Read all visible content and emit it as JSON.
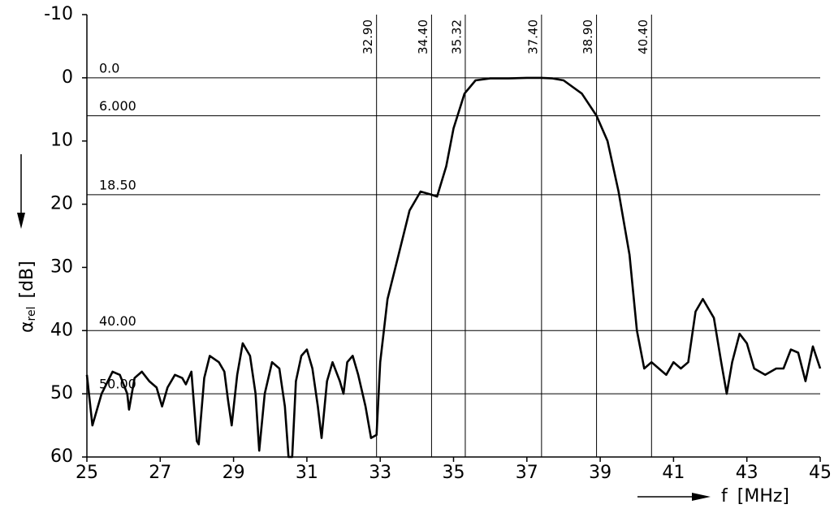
{
  "chart_data": {
    "type": "line",
    "ylabel_symbol": "α",
    "ylabel_subscript": "rel",
    "ylabel_unit": "[dB]",
    "xlabel_symbol": "f",
    "xlabel_unit": "[MHz]",
    "xlim": [
      25,
      45
    ],
    "xticks": [
      25,
      27,
      29,
      31,
      33,
      35,
      37,
      39,
      41,
      43,
      45
    ],
    "ylim": [
      60,
      -10
    ],
    "yticks": [
      -10,
      0,
      10,
      20,
      30,
      40,
      50,
      60
    ],
    "color": "#000000",
    "reference_lines": [
      {
        "value": 0,
        "label": "0.0"
      },
      {
        "value": 6,
        "label": "6.000"
      },
      {
        "value": 18.5,
        "label": "18.50"
      },
      {
        "value": 40,
        "label": "40.00"
      },
      {
        "value": 50,
        "label": "50.00"
      }
    ],
    "markers": [
      {
        "value": 32.9,
        "label": "32.90"
      },
      {
        "value": 34.4,
        "label": "34.40"
      },
      {
        "value": 35.32,
        "label": "35.32"
      },
      {
        "value": 37.4,
        "label": "37.40"
      },
      {
        "value": 38.9,
        "label": "38.90"
      },
      {
        "value": 40.4,
        "label": "40.40"
      }
    ],
    "x": [
      25,
      25.15,
      25.4,
      25.7,
      25.9,
      26.1,
      26.15,
      26.3,
      26.5,
      26.7,
      26.9,
      27.05,
      27.2,
      27.4,
      27.6,
      27.7,
      27.85,
      28.0,
      28.05,
      28.2,
      28.35,
      28.6,
      28.75,
      28.85,
      28.95,
      29.1,
      29.25,
      29.45,
      29.6,
      29.7,
      29.85,
      30.05,
      30.25,
      30.4,
      30.5,
      30.6,
      30.7,
      30.85,
      31.0,
      31.15,
      31.3,
      31.4,
      31.55,
      31.7,
      31.9,
      32.0,
      32.1,
      32.25,
      32.4,
      32.6,
      32.75,
      32.9,
      33.0,
      33.2,
      33.5,
      33.8,
      34.1,
      34.4,
      34.55,
      34.8,
      35.0,
      35.3,
      35.6,
      36.0,
      36.5,
      37.0,
      37.4,
      37.7,
      38.0,
      38.5,
      38.9,
      39.2,
      39.5,
      39.8,
      40.0,
      40.2,
      40.4,
      40.6,
      40.8,
      41.0,
      41.2,
      41.4,
      41.6,
      41.8,
      42.1,
      42.3,
      42.45,
      42.6,
      42.8,
      43.0,
      43.2,
      43.5,
      43.8,
      44.0,
      44.2,
      44.4,
      44.6,
      44.8,
      45.0
    ],
    "values": [
      47,
      55,
      50,
      46.5,
      47,
      50,
      52.5,
      47.5,
      46.5,
      48,
      49,
      52,
      49,
      47,
      47.5,
      48.5,
      46.5,
      57.5,
      58,
      47.5,
      44,
      45,
      46.5,
      51,
      55,
      47,
      42,
      44,
      50,
      59,
      50,
      45,
      46,
      52,
      60,
      60,
      48,
      44,
      43,
      46,
      52,
      57,
      48,
      45,
      48,
      50,
      45,
      44,
      47,
      52,
      57,
      56.5,
      45,
      35,
      28,
      21,
      18,
      18.5,
      18.8,
      14,
      8,
      2.5,
      0.4,
      0.1,
      0.1,
      0,
      0,
      0.1,
      0.4,
      2.5,
      6,
      10,
      18,
      28,
      40,
      46,
      45,
      46,
      47,
      45,
      46,
      45,
      37,
      35,
      38,
      45,
      50,
      45,
      40.5,
      42,
      46,
      47,
      46,
      46,
      43,
      43.5,
      48,
      42.5,
      46
    ]
  }
}
